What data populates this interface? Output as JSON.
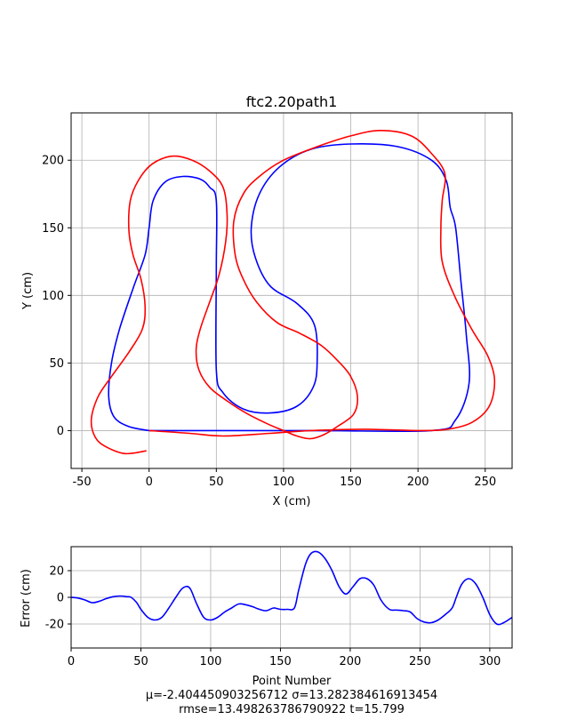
{
  "chart_data": [
    {
      "type": "line",
      "title": "ftc2.20path1",
      "xlabel": "X (cm)",
      "ylabel": "Y (cm)",
      "xlim": [
        -58,
        270
      ],
      "ylim": [
        -28,
        235
      ],
      "xticks": [
        -50,
        0,
        50,
        100,
        150,
        200,
        250
      ],
      "yticks": [
        0,
        50,
        100,
        150,
        200
      ],
      "grid": true,
      "series": [
        {
          "color": "#0000ff",
          "points": [
            [
              0,
              0
            ],
            [
              120,
              0
            ],
            [
              210,
              0
            ],
            [
              228,
              8
            ],
            [
              238,
              35
            ],
            [
              236,
              70
            ],
            [
              232,
              110
            ],
            [
              228,
              150
            ],
            [
              224,
              165
            ],
            [
              221,
              185
            ],
            [
              210,
              200
            ],
            [
              185,
              210
            ],
            [
              150,
              212
            ],
            [
              120,
              208
            ],
            [
              97,
              195
            ],
            [
              82,
              175
            ],
            [
              76,
              150
            ],
            [
              79,
              128
            ],
            [
              90,
              107
            ],
            [
              110,
              94
            ],
            [
              123,
              78
            ],
            [
              125,
              50
            ],
            [
              122,
              32
            ],
            [
              110,
              18
            ],
            [
              90,
              13
            ],
            [
              70,
              16
            ],
            [
              55,
              28
            ],
            [
              50,
              45
            ],
            [
              50,
              120
            ],
            [
              50,
              170
            ],
            [
              45,
              180
            ],
            [
              38,
              186
            ],
            [
              25,
              188
            ],
            [
              12,
              184
            ],
            [
              3,
              170
            ],
            [
              0,
              150
            ],
            [
              -3,
              130
            ],
            [
              -12,
              105
            ],
            [
              -22,
              75
            ],
            [
              -28,
              50
            ],
            [
              -30,
              25
            ],
            [
              -26,
              10
            ],
            [
              -15,
              3
            ],
            [
              0,
              0
            ]
          ]
        },
        {
          "color": "#ff0000",
          "points": [
            [
              -2,
              -15
            ],
            [
              -18,
              -17
            ],
            [
              -32,
              -12
            ],
            [
              -40,
              -5
            ],
            [
              -43,
              8
            ],
            [
              -38,
              25
            ],
            [
              -28,
              40
            ],
            [
              -15,
              58
            ],
            [
              -5,
              75
            ],
            [
              -3,
              92
            ],
            [
              -6,
              112
            ],
            [
              -12,
              130
            ],
            [
              -15,
              148
            ],
            [
              -14,
              170
            ],
            [
              -8,
              185
            ],
            [
              2,
              197
            ],
            [
              17,
              203
            ],
            [
              32,
              200
            ],
            [
              45,
              192
            ],
            [
              55,
              180
            ],
            [
              58,
              160
            ],
            [
              57,
              140
            ],
            [
              52,
              115
            ],
            [
              45,
              95
            ],
            [
              38,
              75
            ],
            [
              35,
              60
            ],
            [
              37,
              45
            ],
            [
              45,
              32
            ],
            [
              58,
              22
            ],
            [
              72,
              13
            ],
            [
              88,
              5
            ],
            [
              100,
              0
            ],
            [
              110,
              -4
            ],
            [
              120,
              -6
            ],
            [
              130,
              -3
            ],
            [
              140,
              3
            ],
            [
              152,
              12
            ],
            [
              155,
              25
            ],
            [
              150,
              40
            ],
            [
              140,
              52
            ],
            [
              128,
              63
            ],
            [
              112,
              72
            ],
            [
              95,
              80
            ],
            [
              80,
              95
            ],
            [
              70,
              112
            ],
            [
              64,
              130
            ],
            [
              63,
              155
            ],
            [
              70,
              175
            ],
            [
              82,
              188
            ],
            [
              100,
              200
            ],
            [
              125,
              210
            ],
            [
              150,
              218
            ],
            [
              172,
              222
            ],
            [
              195,
              218
            ],
            [
              210,
              205
            ],
            [
              220,
              190
            ],
            [
              218,
              170
            ],
            [
              217,
              150
            ],
            [
              218,
              125
            ],
            [
              227,
              100
            ],
            [
              240,
              75
            ],
            [
              252,
              55
            ],
            [
              257,
              37
            ],
            [
              253,
              18
            ],
            [
              240,
              6
            ],
            [
              222,
              1
            ],
            [
              200,
              0
            ],
            [
              160,
              1
            ],
            [
              120,
              0
            ],
            [
              90,
              -2
            ],
            [
              55,
              -4
            ],
            [
              30,
              -2
            ],
            [
              0,
              0
            ]
          ]
        }
      ]
    },
    {
      "type": "line",
      "xlabel": "Point Number",
      "ylabel": "Error (cm)",
      "xlim": [
        0,
        316
      ],
      "ylim": [
        -38,
        38
      ],
      "xticks": [
        0,
        50,
        100,
        150,
        200,
        250,
        300
      ],
      "yticks": [
        -20,
        0,
        20
      ],
      "grid": true,
      "series": [
        {
          "color": "#0000ff",
          "points": [
            [
              0,
              0
            ],
            [
              5,
              -0.5
            ],
            [
              10,
              -2
            ],
            [
              15,
              -4
            ],
            [
              20,
              -3
            ],
            [
              25,
              -1
            ],
            [
              30,
              0.5
            ],
            [
              35,
              1
            ],
            [
              40,
              0.5
            ],
            [
              43,
              0
            ],
            [
              47,
              -4
            ],
            [
              50,
              -9
            ],
            [
              55,
              -15
            ],
            [
              60,
              -17
            ],
            [
              65,
              -15
            ],
            [
              70,
              -8
            ],
            [
              75,
              0
            ],
            [
              80,
              7
            ],
            [
              85,
              7
            ],
            [
              90,
              -5
            ],
            [
              95,
              -15
            ],
            [
              100,
              -17
            ],
            [
              105,
              -15
            ],
            [
              110,
              -11
            ],
            [
              115,
              -8
            ],
            [
              120,
              -5
            ],
            [
              125,
              -5.5
            ],
            [
              130,
              -7
            ],
            [
              135,
              -9
            ],
            [
              140,
              -10
            ],
            [
              145,
              -8
            ],
            [
              150,
              -9
            ],
            [
              155,
              -9
            ],
            [
              160,
              -8
            ],
            [
              163,
              5
            ],
            [
              168,
              25
            ],
            [
              172,
              33
            ],
            [
              177,
              34
            ],
            [
              182,
              29
            ],
            [
              187,
              20
            ],
            [
              192,
              8
            ],
            [
              197,
              2.5
            ],
            [
              202,
              8
            ],
            [
              207,
              14
            ],
            [
              212,
              14
            ],
            [
              217,
              9
            ],
            [
              222,
              -2
            ],
            [
              228,
              -9
            ],
            [
              233,
              -9.5
            ],
            [
              238,
              -10
            ],
            [
              243,
              -11
            ],
            [
              248,
              -16
            ],
            [
              253,
              -18.5
            ],
            [
              258,
              -19
            ],
            [
              263,
              -17
            ],
            [
              268,
              -13
            ],
            [
              273,
              -8
            ],
            [
              276,
              0
            ],
            [
              280,
              10
            ],
            [
              285,
              14
            ],
            [
              290,
              10
            ],
            [
              295,
              0
            ],
            [
              300,
              -13
            ],
            [
              305,
              -20
            ],
            [
              310,
              -19
            ],
            [
              316,
              -15
            ]
          ]
        }
      ],
      "stats_line1": "μ=-2.404450903256712    σ=13.282384616913454",
      "stats_line2": "rmse=13.498263786790922    t=15.799"
    }
  ]
}
